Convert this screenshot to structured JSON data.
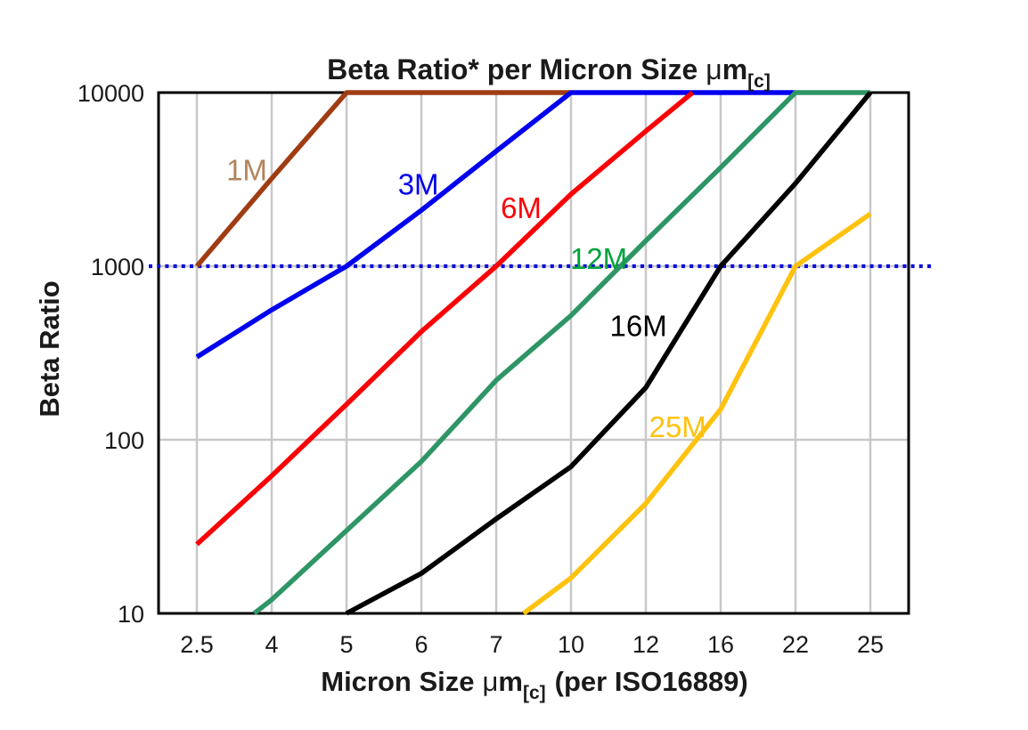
{
  "chart_data": {
    "type": "line",
    "title": "Beta Ratio* per Micron Size μm[c]",
    "title_parts": {
      "pre": "Beta Ratio* per Micron Size",
      "mu": "μ",
      "m": "m",
      "sub": "[c]"
    },
    "xlabel": "Micron Size μm[c] (per ISO16889)",
    "xlabel_parts": {
      "pre": "Micron Size",
      "mu": "μ",
      "m": "m",
      "sub": "[c]",
      "post": "(per ISO16889)"
    },
    "ylabel": "Beta Ratio",
    "x_categories": [
      2.5,
      4,
      5,
      6,
      7,
      10,
      12,
      16,
      22,
      25
    ],
    "x_tick_labels": [
      "2.5",
      "4",
      "5",
      "6",
      "7",
      "10",
      "12",
      "16",
      "22",
      "25"
    ],
    "y_scale": "log",
    "ylim": [
      10,
      10000
    ],
    "y_ticks": [
      10,
      100,
      1000,
      10000
    ],
    "y_tick_labels": [
      "10",
      "100",
      "1000",
      "10000"
    ],
    "grid": {
      "vertical": true,
      "horizontal_at": [
        100,
        1000
      ],
      "color": "#c8c8c8"
    },
    "frame_color": "#000000",
    "reference_line": {
      "y": 1000,
      "color": "#0b0bdd",
      "style": "dotted"
    },
    "legend_position": "inline-labels",
    "series": [
      {
        "name": "1M",
        "line_color": "#a03c12",
        "label_color": "#b3835a",
        "label_at": {
          "x": 3.5,
          "y": 3550
        },
        "points": [
          [
            2.5,
            1000
          ],
          [
            4,
            3200
          ],
          [
            5,
            10000
          ],
          [
            10,
            10000
          ]
        ]
      },
      {
        "name": "3M",
        "line_color": "#0000ee",
        "label_color": "#0000ee",
        "label_at": {
          "x": 5.96,
          "y": 2950
        },
        "points": [
          [
            2.5,
            300
          ],
          [
            4,
            560
          ],
          [
            5,
            1000
          ],
          [
            6,
            2100
          ],
          [
            7,
            4600
          ],
          [
            10,
            10000
          ],
          [
            22,
            10000
          ]
        ]
      },
      {
        "name": "6M",
        "line_color": "#fb0006",
        "label_color": "#fb0006",
        "label_at": {
          "x": 8.0,
          "y": 2160
        },
        "points": [
          [
            2.5,
            25
          ],
          [
            4,
            62
          ],
          [
            5,
            160
          ],
          [
            6,
            420
          ],
          [
            7,
            1000
          ],
          [
            10,
            2600
          ],
          [
            12,
            6000
          ],
          [
            14.5,
            10000
          ]
        ]
      },
      {
        "name": "12M",
        "line_color": "#2e9566",
        "label_color": "#00a33c",
        "label_at": {
          "x": 10.74,
          "y": 1100
        },
        "points": [
          [
            3.65,
            10
          ],
          [
            4,
            12
          ],
          [
            5,
            30
          ],
          [
            6,
            75
          ],
          [
            7,
            220
          ],
          [
            10,
            520
          ],
          [
            12,
            1400
          ],
          [
            16,
            3700
          ],
          [
            22,
            10000
          ],
          [
            25,
            10000
          ]
        ]
      },
      {
        "name": "16M",
        "line_color": "#000000",
        "label_color": "#000000",
        "label_at": {
          "x": 11.8,
          "y": 450
        },
        "points": [
          [
            5,
            10
          ],
          [
            6,
            17
          ],
          [
            7,
            35
          ],
          [
            10,
            70
          ],
          [
            12,
            200
          ],
          [
            16,
            1000
          ],
          [
            22,
            3000
          ],
          [
            25,
            10000
          ]
        ]
      },
      {
        "name": "25M",
        "line_color": "#ffc20e",
        "label_color": "#ffc20e",
        "label_at": {
          "x": 13.7,
          "y": 118
        },
        "points": [
          [
            8.1,
            10
          ],
          [
            10,
            16
          ],
          [
            12,
            43
          ],
          [
            16,
            150
          ],
          [
            22,
            1000
          ],
          [
            25,
            2000
          ]
        ]
      }
    ]
  }
}
